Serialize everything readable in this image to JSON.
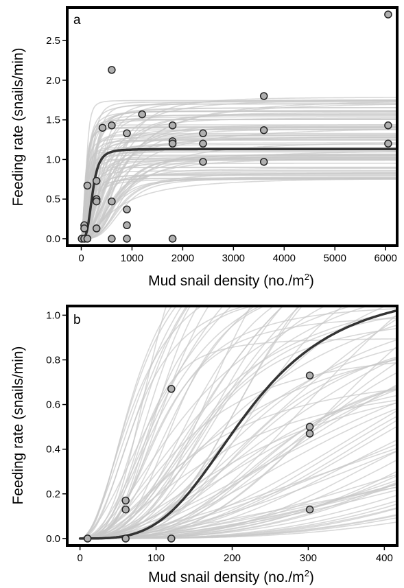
{
  "chart_data": [
    {
      "type": "scatter",
      "panel_label": "a",
      "xlabel": "Mud snail density (no./m",
      "xlabel_superscript": "2",
      "xlabel_suffix": ")",
      "ylabel": "Feeding rate (snails/min)",
      "xlim": [
        -250,
        6200
      ],
      "ylim": [
        -0.07,
        2.9
      ],
      "xticks": [
        0,
        1000,
        2000,
        3000,
        4000,
        5000,
        6000
      ],
      "xtick_labels": [
        "0",
        "1000",
        "2000",
        "3000",
        "4000",
        "5000",
        "6000"
      ],
      "yticks": [
        0,
        0.5,
        1.0,
        1.5,
        2.0,
        2.5
      ],
      "ytick_labels": [
        "0.0",
        "0.5",
        "1.0",
        "1.5",
        "2.0",
        "2.5"
      ],
      "grid": false,
      "points": [
        {
          "x": 10,
          "y": 0.0
        },
        {
          "x": 60,
          "y": 0.0
        },
        {
          "x": 120,
          "y": 0.0
        },
        {
          "x": 60,
          "y": 0.17
        },
        {
          "x": 60,
          "y": 0.13
        },
        {
          "x": 120,
          "y": 0.67
        },
        {
          "x": 300,
          "y": 0.73
        },
        {
          "x": 300,
          "y": 0.5
        },
        {
          "x": 300,
          "y": 0.47
        },
        {
          "x": 300,
          "y": 0.13
        },
        {
          "x": 420,
          "y": 1.4
        },
        {
          "x": 600,
          "y": 2.13
        },
        {
          "x": 600,
          "y": 1.43
        },
        {
          "x": 600,
          "y": 0.47
        },
        {
          "x": 600,
          "y": 0.0
        },
        {
          "x": 900,
          "y": 1.33
        },
        {
          "x": 900,
          "y": 0.37
        },
        {
          "x": 900,
          "y": 0.17
        },
        {
          "x": 900,
          "y": 0.0
        },
        {
          "x": 1200,
          "y": 1.57
        },
        {
          "x": 1800,
          "y": 1.43
        },
        {
          "x": 1800,
          "y": 1.23
        },
        {
          "x": 1800,
          "y": 1.2
        },
        {
          "x": 1800,
          "y": 0.0
        },
        {
          "x": 2400,
          "y": 1.33
        },
        {
          "x": 2400,
          "y": 1.2
        },
        {
          "x": 2400,
          "y": 0.97
        },
        {
          "x": 3600,
          "y": 1.8
        },
        {
          "x": 3600,
          "y": 1.37
        },
        {
          "x": 3600,
          "y": 0.97
        },
        {
          "x": 6050,
          "y": 2.83
        },
        {
          "x": 6050,
          "y": 1.43
        },
        {
          "x": 6050,
          "y": 1.2
        }
      ],
      "fit": {
        "model": "type III functional response",
        "max_rate": 1.13,
        "half_saturation": 220,
        "exponent": 3.5
      },
      "posterior_curves": {
        "count": 90,
        "max_rate_range": [
          0.75,
          1.82
        ],
        "half_saturation_range": [
          70,
          900
        ],
        "exponent_range": [
          1.6,
          3.6
        ]
      },
      "colors": {
        "points": "#b0b0b0",
        "fit": "#333333",
        "posterior": "#c8c8c8"
      }
    },
    {
      "type": "scatter",
      "panel_label": "b",
      "xlabel": "Mud snail density (no./m",
      "xlabel_superscript": "2",
      "xlabel_suffix": ")",
      "ylabel": "Feeding rate (snails/min)",
      "xlim": [
        -15,
        415
      ],
      "ylim": [
        -0.025,
        1.035
      ],
      "xticks": [
        0,
        100,
        200,
        300,
        400
      ],
      "xtick_labels": [
        "0",
        "100",
        "200",
        "300",
        "400"
      ],
      "yticks": [
        0,
        0.2,
        0.4,
        0.6,
        0.8,
        1.0
      ],
      "ytick_labels": [
        "0.0",
        "0.2",
        "0.4",
        "0.6",
        "0.8",
        "1.0"
      ],
      "grid": false,
      "points": [
        {
          "x": 10,
          "y": 0.0
        },
        {
          "x": 60,
          "y": 0.0
        },
        {
          "x": 120,
          "y": 0.0
        },
        {
          "x": 60,
          "y": 0.17
        },
        {
          "x": 60,
          "y": 0.13
        },
        {
          "x": 120,
          "y": 0.67
        },
        {
          "x": 302,
          "y": 0.73
        },
        {
          "x": 302,
          "y": 0.5
        },
        {
          "x": 302,
          "y": 0.47
        },
        {
          "x": 302,
          "y": 0.13
        }
      ],
      "fit": {
        "model": "type III functional response",
        "max_rate": 1.13,
        "half_saturation": 220,
        "exponent": 3.5
      },
      "posterior_curves": {
        "count": 90,
        "max_rate_range": [
          0.75,
          1.82
        ],
        "half_saturation_range": [
          70,
          900
        ],
        "exponent_range": [
          1.6,
          3.6
        ]
      },
      "colors": {
        "points": "#b0b0b0",
        "fit": "#333333",
        "posterior": "#c8c8c8"
      }
    }
  ]
}
